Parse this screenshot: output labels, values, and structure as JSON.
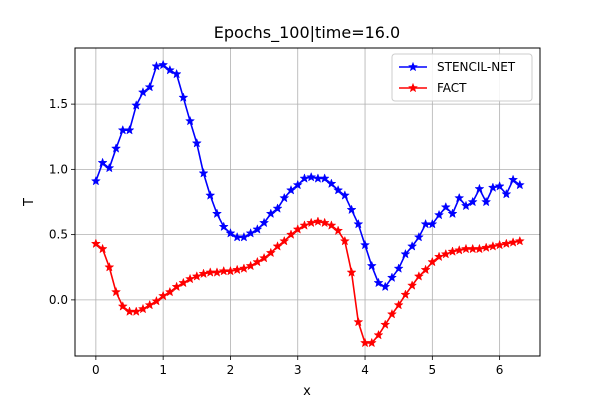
{
  "chart_data": {
    "type": "line",
    "title": "Epochs_100|time=16.0",
    "xlabel": "x",
    "ylabel": "T",
    "xlim": [
      -0.31,
      6.6
    ],
    "ylim": [
      -0.43,
      1.93
    ],
    "xticks": [
      0,
      1,
      2,
      3,
      4,
      5,
      6
    ],
    "yticks": [
      0.0,
      0.5,
      1.0,
      1.5
    ],
    "xtick_labels": [
      "0",
      "1",
      "2",
      "3",
      "4",
      "5",
      "6"
    ],
    "ytick_labels": [
      "0.0",
      "0.5",
      "1.0",
      "1.5"
    ],
    "grid": true,
    "legend_position": "top-right",
    "series": [
      {
        "name": "STENCIL-NET",
        "color": "#0000ff",
        "marker": "star",
        "points": [
          [
            0.0,
            0.91
          ],
          [
            0.1,
            1.05
          ],
          [
            0.2,
            1.01
          ],
          [
            0.3,
            1.16
          ],
          [
            0.4,
            1.3
          ],
          [
            0.5,
            1.3
          ],
          [
            0.6,
            1.49
          ],
          [
            0.7,
            1.59
          ],
          [
            0.8,
            1.63
          ],
          [
            0.9,
            1.79
          ],
          [
            1.0,
            1.8
          ],
          [
            1.1,
            1.76
          ],
          [
            1.2,
            1.73
          ],
          [
            1.3,
            1.55
          ],
          [
            1.4,
            1.37
          ],
          [
            1.5,
            1.2
          ],
          [
            1.6,
            0.97
          ],
          [
            1.7,
            0.8
          ],
          [
            1.8,
            0.66
          ],
          [
            1.9,
            0.56
          ],
          [
            2.0,
            0.51
          ],
          [
            2.1,
            0.48
          ],
          [
            2.2,
            0.48
          ],
          [
            2.3,
            0.51
          ],
          [
            2.4,
            0.54
          ],
          [
            2.5,
            0.59
          ],
          [
            2.6,
            0.66
          ],
          [
            2.7,
            0.7
          ],
          [
            2.8,
            0.78
          ],
          [
            2.9,
            0.84
          ],
          [
            3.0,
            0.88
          ],
          [
            3.1,
            0.93
          ],
          [
            3.2,
            0.94
          ],
          [
            3.3,
            0.93
          ],
          [
            3.4,
            0.93
          ],
          [
            3.5,
            0.89
          ],
          [
            3.6,
            0.84
          ],
          [
            3.7,
            0.8
          ],
          [
            3.8,
            0.69
          ],
          [
            3.9,
            0.58
          ],
          [
            4.0,
            0.42
          ],
          [
            4.1,
            0.26
          ],
          [
            4.2,
            0.13
          ],
          [
            4.3,
            0.1
          ],
          [
            4.4,
            0.17
          ],
          [
            4.5,
            0.24
          ],
          [
            4.6,
            0.35
          ],
          [
            4.7,
            0.41
          ],
          [
            4.8,
            0.48
          ],
          [
            4.9,
            0.58
          ],
          [
            5.0,
            0.58
          ],
          [
            5.1,
            0.65
          ],
          [
            5.2,
            0.71
          ],
          [
            5.3,
            0.66
          ],
          [
            5.4,
            0.78
          ],
          [
            5.5,
            0.72
          ],
          [
            5.6,
            0.75
          ],
          [
            5.7,
            0.85
          ],
          [
            5.8,
            0.75
          ],
          [
            5.9,
            0.86
          ],
          [
            6.0,
            0.87
          ],
          [
            6.1,
            0.81
          ],
          [
            6.2,
            0.92
          ],
          [
            6.3,
            0.88
          ]
        ]
      },
      {
        "name": "FACT",
        "color": "#ff0000",
        "marker": "star",
        "points": [
          [
            0.0,
            0.43
          ],
          [
            0.1,
            0.39
          ],
          [
            0.2,
            0.25
          ],
          [
            0.3,
            0.06
          ],
          [
            0.4,
            -0.05
          ],
          [
            0.5,
            -0.09
          ],
          [
            0.6,
            -0.09
          ],
          [
            0.7,
            -0.07
          ],
          [
            0.8,
            -0.04
          ],
          [
            0.9,
            -0.01
          ],
          [
            1.0,
            0.03
          ],
          [
            1.1,
            0.06
          ],
          [
            1.2,
            0.1
          ],
          [
            1.3,
            0.13
          ],
          [
            1.4,
            0.16
          ],
          [
            1.5,
            0.18
          ],
          [
            1.6,
            0.2
          ],
          [
            1.7,
            0.21
          ],
          [
            1.8,
            0.21
          ],
          [
            1.9,
            0.22
          ],
          [
            2.0,
            0.22
          ],
          [
            2.1,
            0.23
          ],
          [
            2.2,
            0.24
          ],
          [
            2.3,
            0.26
          ],
          [
            2.4,
            0.29
          ],
          [
            2.5,
            0.32
          ],
          [
            2.6,
            0.36
          ],
          [
            2.7,
            0.41
          ],
          [
            2.8,
            0.45
          ],
          [
            2.9,
            0.5
          ],
          [
            3.0,
            0.54
          ],
          [
            3.1,
            0.57
          ],
          [
            3.2,
            0.59
          ],
          [
            3.3,
            0.6
          ],
          [
            3.4,
            0.59
          ],
          [
            3.5,
            0.57
          ],
          [
            3.6,
            0.53
          ],
          [
            3.7,
            0.45
          ],
          [
            3.8,
            0.21
          ],
          [
            3.9,
            -0.17
          ],
          [
            4.0,
            -0.33
          ],
          [
            4.1,
            -0.33
          ],
          [
            4.2,
            -0.27
          ],
          [
            4.3,
            -0.19
          ],
          [
            4.4,
            -0.11
          ],
          [
            4.5,
            -0.04
          ],
          [
            4.6,
            0.04
          ],
          [
            4.7,
            0.11
          ],
          [
            4.8,
            0.18
          ],
          [
            4.9,
            0.23
          ],
          [
            5.0,
            0.29
          ],
          [
            5.1,
            0.33
          ],
          [
            5.2,
            0.35
          ],
          [
            5.3,
            0.37
          ],
          [
            5.4,
            0.38
          ],
          [
            5.5,
            0.39
          ],
          [
            5.6,
            0.39
          ],
          [
            5.7,
            0.39
          ],
          [
            5.8,
            0.4
          ],
          [
            5.9,
            0.41
          ],
          [
            6.0,
            0.42
          ],
          [
            6.1,
            0.43
          ],
          [
            6.2,
            0.44
          ],
          [
            6.3,
            0.45
          ]
        ]
      }
    ]
  }
}
